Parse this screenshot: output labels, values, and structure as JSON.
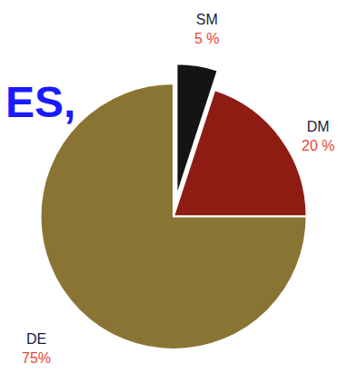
{
  "chart_data": {
    "type": "pie",
    "title": "ES,",
    "categories": [
      "SM",
      "DM",
      "DE"
    ],
    "values": [
      5,
      20,
      75
    ],
    "value_labels": [
      "5 %",
      "20 %",
      "75%"
    ],
    "colors": [
      "#141414",
      "#8e1c12",
      "#8a7434"
    ],
    "data_labels": true
  }
}
